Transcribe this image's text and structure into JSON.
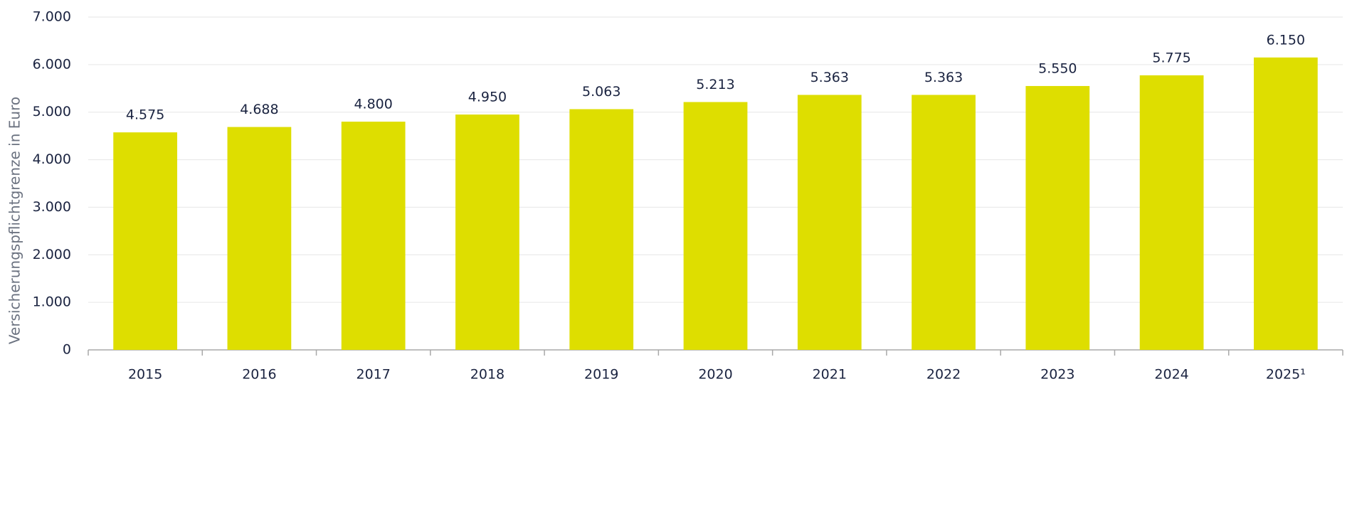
{
  "chart_data": {
    "type": "bar",
    "y_axis_label": "Versicherungspflichtgrenze in Euro",
    "categories": [
      "2015",
      "2016",
      "2017",
      "2018",
      "2019",
      "2020",
      "2021",
      "2022",
      "2023",
      "2024",
      "2025¹"
    ],
    "values": [
      4575,
      4688,
      4800,
      4950,
      5063,
      5213,
      5363,
      5363,
      5550,
      5775,
      6150
    ],
    "value_labels": [
      "4.575",
      "4.688",
      "4.800",
      "4.950",
      "5.063",
      "5.213",
      "5.363",
      "5.363",
      "5.550",
      "5.775",
      "6.150"
    ],
    "color": "#dede00",
    "ylim": [
      0,
      7000
    ],
    "yticks": [
      0,
      {
        "value": 1000,
        "label": "1.000"
      },
      {
        "value": 2000,
        "label": "2.000"
      },
      {
        "value": 3000,
        "label": "3.000"
      },
      {
        "value": 4000,
        "label": "4.000"
      },
      {
        "value": 5000,
        "label": "5.000"
      },
      {
        "value": 6000,
        "label": "6.000"
      },
      {
        "value": 7000,
        "label": "7.000"
      }
    ],
    "grid": true
  }
}
